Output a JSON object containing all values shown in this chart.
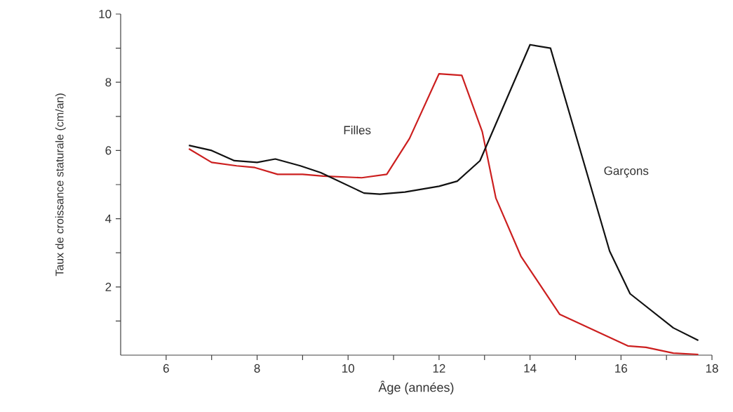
{
  "chart_data": {
    "type": "line",
    "xlabel": "Âge (années)",
    "ylabel": "Taux de croissance staturale (cm/an)",
    "xlim": [
      5,
      18
    ],
    "ylim": [
      0,
      10
    ],
    "xticks": [
      6,
      {
        "value": 7,
        "label": null
      },
      8,
      {
        "value": 9,
        "label": null
      },
      10,
      {
        "value": 11,
        "label": null
      },
      12,
      {
        "value": 13,
        "label": null
      },
      14,
      {
        "value": 15,
        "label": null
      },
      16,
      {
        "value": 17,
        "label": null
      },
      18
    ],
    "yticks": [
      {
        "value": 1,
        "label": null
      },
      2,
      {
        "value": 3,
        "label": null
      },
      4,
      {
        "value": 5,
        "label": null
      },
      6,
      {
        "value": 7,
        "label": null
      },
      8,
      {
        "value": 9,
        "label": null
      },
      10
    ],
    "grid": false,
    "legend": false,
    "marker": "none",
    "line_style": "solid",
    "series": [
      {
        "name": "Filles",
        "color": "#cc1f1f",
        "x": [
          6.5,
          7.0,
          7.55,
          7.95,
          8.45,
          9.0,
          9.45,
          10.3,
          10.85,
          11.35,
          12.0,
          12.5,
          12.95,
          13.25,
          13.8,
          14.65,
          16.15,
          16.55,
          17.15,
          17.7
        ],
        "values": [
          6.05,
          5.65,
          5.55,
          5.5,
          5.3,
          5.3,
          5.25,
          5.2,
          5.3,
          6.35,
          8.25,
          8.2,
          6.55,
          4.6,
          2.9,
          1.2,
          0.27,
          0.23,
          0.06,
          0.02
        ]
      },
      {
        "name": "Garçons",
        "color": "#111111",
        "x": [
          6.5,
          7.0,
          7.5,
          8.0,
          8.4,
          8.95,
          9.4,
          10.35,
          10.7,
          11.25,
          12.0,
          12.4,
          12.9,
          14.0,
          14.45,
          15.75,
          16.2,
          17.15,
          17.7
        ],
        "values": [
          6.15,
          6.0,
          5.7,
          5.65,
          5.75,
          5.55,
          5.35,
          4.75,
          4.72,
          4.78,
          4.95,
          5.1,
          5.7,
          9.1,
          9.0,
          3.05,
          1.8,
          0.8,
          0.43
        ]
      }
    ]
  }
}
